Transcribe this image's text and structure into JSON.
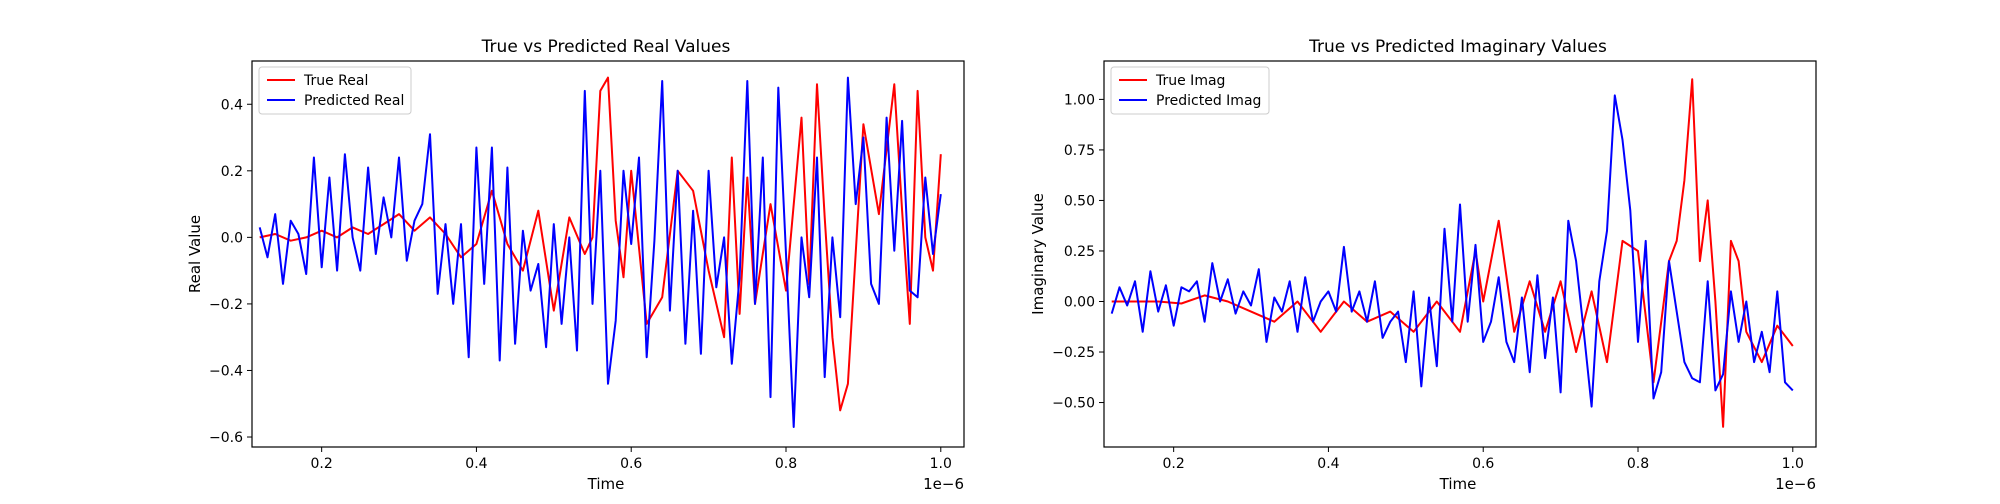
{
  "colors": {
    "true": "#ff0000",
    "predicted": "#0000ff",
    "axis": "#000000",
    "background": "#ffffff"
  },
  "chart_data": [
    {
      "type": "line",
      "title": "True vs Predicted Real Values",
      "xlabel": "Time",
      "ylabel": "Real Value",
      "x_offset_label": "1e−6",
      "xlim": [
        0.11,
        1.03
      ],
      "ylim": [
        -0.63,
        0.53
      ],
      "x_ticks": [
        0.2,
        0.4,
        0.6,
        0.8,
        1.0
      ],
      "x_tick_labels": [
        "0.2",
        "0.4",
        "0.6",
        "0.8",
        "1.0"
      ],
      "y_ticks": [
        -0.6,
        -0.4,
        -0.2,
        0.0,
        0.2,
        0.4
      ],
      "y_tick_labels": [
        "−0.6",
        "−0.4",
        "−0.2",
        "0.0",
        "0.2",
        "0.4"
      ],
      "grid": false,
      "legend_position": "upper-left",
      "series": [
        {
          "name": "True Real",
          "color": "#ff0000",
          "x": [
            0.12,
            0.14,
            0.16,
            0.18,
            0.2,
            0.22,
            0.24,
            0.26,
            0.28,
            0.3,
            0.32,
            0.34,
            0.36,
            0.38,
            0.4,
            0.42,
            0.44,
            0.46,
            0.48,
            0.5,
            0.52,
            0.54,
            0.55,
            0.56,
            0.57,
            0.58,
            0.59,
            0.6,
            0.62,
            0.64,
            0.66,
            0.68,
            0.7,
            0.72,
            0.73,
            0.74,
            0.75,
            0.76,
            0.78,
            0.8,
            0.82,
            0.83,
            0.84,
            0.85,
            0.86,
            0.87,
            0.88,
            0.9,
            0.92,
            0.94,
            0.95,
            0.96,
            0.97,
            0.98,
            0.99,
            1.0
          ],
          "y": [
            0.0,
            0.01,
            -0.01,
            0.0,
            0.02,
            0.0,
            0.03,
            0.01,
            0.04,
            0.07,
            0.02,
            0.06,
            0.01,
            -0.06,
            -0.02,
            0.14,
            -0.02,
            -0.1,
            0.08,
            -0.22,
            0.06,
            -0.05,
            0.0,
            0.44,
            0.48,
            0.05,
            -0.12,
            0.2,
            -0.26,
            -0.18,
            0.2,
            0.14,
            -0.1,
            -0.3,
            0.24,
            -0.23,
            0.18,
            -0.2,
            0.1,
            -0.16,
            0.36,
            -0.14,
            0.46,
            0.06,
            -0.3,
            -0.52,
            -0.44,
            0.34,
            0.07,
            0.46,
            0.08,
            -0.26,
            0.44,
            0.0,
            -0.1,
            0.25
          ]
        },
        {
          "name": "Predicted Real",
          "color": "#0000ff",
          "x": [
            0.12,
            0.13,
            0.14,
            0.15,
            0.16,
            0.17,
            0.18,
            0.19,
            0.2,
            0.21,
            0.22,
            0.23,
            0.24,
            0.25,
            0.26,
            0.27,
            0.28,
            0.29,
            0.3,
            0.31,
            0.32,
            0.33,
            0.34,
            0.35,
            0.36,
            0.37,
            0.38,
            0.39,
            0.4,
            0.41,
            0.42,
            0.43,
            0.44,
            0.45,
            0.46,
            0.47,
            0.48,
            0.49,
            0.5,
            0.51,
            0.52,
            0.53,
            0.54,
            0.55,
            0.56,
            0.57,
            0.58,
            0.59,
            0.6,
            0.61,
            0.62,
            0.63,
            0.64,
            0.65,
            0.66,
            0.67,
            0.68,
            0.69,
            0.7,
            0.71,
            0.72,
            0.73,
            0.74,
            0.75,
            0.76,
            0.77,
            0.78,
            0.79,
            0.8,
            0.81,
            0.82,
            0.83,
            0.84,
            0.85,
            0.86,
            0.87,
            0.88,
            0.89,
            0.9,
            0.91,
            0.92,
            0.93,
            0.94,
            0.95,
            0.96,
            0.97,
            0.98,
            0.99,
            1.0
          ],
          "y": [
            0.03,
            -0.06,
            0.07,
            -0.14,
            0.05,
            0.01,
            -0.11,
            0.24,
            -0.09,
            0.18,
            -0.1,
            0.25,
            0.0,
            -0.1,
            0.21,
            -0.05,
            0.12,
            0.0,
            0.24,
            -0.07,
            0.05,
            0.1,
            0.31,
            -0.17,
            0.04,
            -0.2,
            0.04,
            -0.36,
            0.27,
            -0.14,
            0.27,
            -0.37,
            0.21,
            -0.32,
            0.02,
            -0.16,
            -0.08,
            -0.33,
            0.04,
            -0.26,
            0.0,
            -0.34,
            0.44,
            -0.2,
            0.2,
            -0.44,
            -0.25,
            0.2,
            -0.02,
            0.24,
            -0.36,
            -0.01,
            0.47,
            -0.22,
            0.2,
            -0.32,
            0.08,
            -0.35,
            0.2,
            -0.15,
            0.0,
            -0.38,
            -0.12,
            0.47,
            -0.2,
            0.24,
            -0.48,
            0.45,
            -0.05,
            -0.57,
            0.0,
            -0.18,
            0.24,
            -0.42,
            0.0,
            -0.24,
            0.48,
            0.1,
            0.3,
            -0.14,
            -0.2,
            0.36,
            -0.04,
            0.35,
            -0.16,
            -0.18,
            0.18,
            -0.05,
            0.13
          ]
        }
      ]
    },
    {
      "type": "line",
      "title": "True vs Predicted Imaginary Values",
      "xlabel": "Time",
      "ylabel": "Imaginary Value",
      "x_offset_label": "1e−6",
      "xlim": [
        0.11,
        1.03
      ],
      "ylim": [
        -0.72,
        1.19
      ],
      "x_ticks": [
        0.2,
        0.4,
        0.6,
        0.8,
        1.0
      ],
      "x_tick_labels": [
        "0.2",
        "0.4",
        "0.6",
        "0.8",
        "1.0"
      ],
      "y_ticks": [
        -0.5,
        -0.25,
        0.0,
        0.25,
        0.5,
        0.75,
        1.0
      ],
      "y_tick_labels": [
        "−0.50",
        "−0.25",
        "0.00",
        "0.25",
        "0.50",
        "0.75",
        "1.00"
      ],
      "grid": false,
      "legend_position": "upper-left",
      "series": [
        {
          "name": "True Imag",
          "color": "#ff0000",
          "x": [
            0.12,
            0.15,
            0.18,
            0.21,
            0.24,
            0.27,
            0.3,
            0.33,
            0.36,
            0.39,
            0.42,
            0.45,
            0.48,
            0.51,
            0.54,
            0.57,
            0.59,
            0.6,
            0.62,
            0.64,
            0.66,
            0.68,
            0.7,
            0.72,
            0.74,
            0.76,
            0.78,
            0.8,
            0.82,
            0.84,
            0.85,
            0.86,
            0.87,
            0.88,
            0.89,
            0.9,
            0.91,
            0.92,
            0.93,
            0.94,
            0.96,
            0.98,
            1.0
          ],
          "y": [
            0.0,
            0.0,
            0.0,
            -0.01,
            0.03,
            0.0,
            -0.05,
            -0.1,
            0.0,
            -0.15,
            0.0,
            -0.1,
            -0.05,
            -0.15,
            0.0,
            -0.15,
            0.25,
            0.0,
            0.4,
            -0.15,
            0.1,
            -0.15,
            0.1,
            -0.25,
            0.05,
            -0.3,
            0.3,
            0.25,
            -0.4,
            0.2,
            0.3,
            0.6,
            1.1,
            0.2,
            0.5,
            0.0,
            -0.62,
            0.3,
            0.2,
            -0.15,
            -0.3,
            -0.12,
            -0.22
          ]
        },
        {
          "name": "Predicted Imag",
          "color": "#0000ff",
          "x": [
            0.12,
            0.13,
            0.14,
            0.15,
            0.16,
            0.17,
            0.18,
            0.19,
            0.2,
            0.21,
            0.22,
            0.23,
            0.24,
            0.25,
            0.26,
            0.27,
            0.28,
            0.29,
            0.3,
            0.31,
            0.32,
            0.33,
            0.34,
            0.35,
            0.36,
            0.37,
            0.38,
            0.39,
            0.4,
            0.41,
            0.42,
            0.43,
            0.44,
            0.45,
            0.46,
            0.47,
            0.48,
            0.49,
            0.5,
            0.51,
            0.52,
            0.53,
            0.54,
            0.55,
            0.56,
            0.57,
            0.58,
            0.59,
            0.6,
            0.61,
            0.62,
            0.63,
            0.64,
            0.65,
            0.66,
            0.67,
            0.68,
            0.69,
            0.7,
            0.71,
            0.72,
            0.73,
            0.74,
            0.75,
            0.76,
            0.77,
            0.78,
            0.79,
            0.8,
            0.81,
            0.82,
            0.83,
            0.84,
            0.85,
            0.86,
            0.87,
            0.88,
            0.89,
            0.9,
            0.91,
            0.92,
            0.93,
            0.94,
            0.95,
            0.96,
            0.97,
            0.98,
            0.99,
            1.0
          ],
          "y": [
            -0.06,
            0.07,
            -0.02,
            0.1,
            -0.15,
            0.15,
            -0.05,
            0.08,
            -0.12,
            0.07,
            0.05,
            0.1,
            -0.1,
            0.19,
            0.0,
            0.11,
            -0.06,
            0.05,
            -0.02,
            0.16,
            -0.2,
            0.02,
            -0.05,
            0.1,
            -0.15,
            0.12,
            -0.1,
            0.0,
            0.05,
            -0.05,
            0.27,
            -0.05,
            0.05,
            -0.1,
            0.1,
            -0.18,
            -0.1,
            -0.05,
            -0.3,
            0.05,
            -0.42,
            0.02,
            -0.32,
            0.36,
            -0.1,
            0.48,
            -0.1,
            0.28,
            -0.2,
            -0.1,
            0.12,
            -0.2,
            -0.3,
            0.02,
            -0.35,
            0.13,
            -0.28,
            0.02,
            -0.45,
            0.4,
            0.2,
            -0.15,
            -0.52,
            0.1,
            0.35,
            1.02,
            0.8,
            0.45,
            -0.2,
            0.3,
            -0.48,
            -0.35,
            0.2,
            -0.05,
            -0.3,
            -0.38,
            -0.4,
            0.1,
            -0.44,
            -0.36,
            0.05,
            -0.2,
            0.0,
            -0.3,
            -0.15,
            -0.35,
            0.05,
            -0.4,
            -0.44
          ]
        }
      ]
    }
  ]
}
